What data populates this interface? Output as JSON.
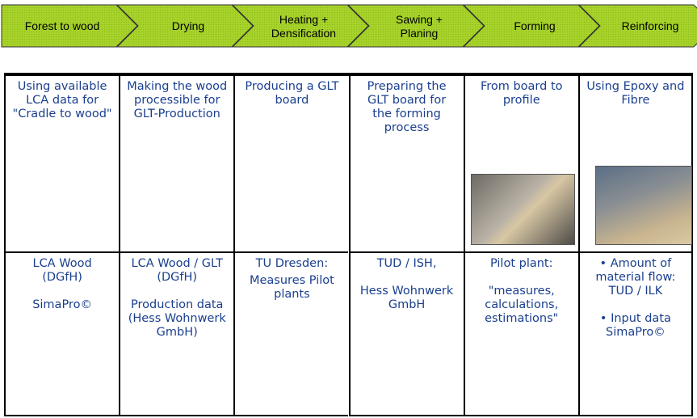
{
  "process_steps": [
    "Forest to wood",
    "Drying",
    "Heating + Densification",
    "Sawing + Planing",
    "Forming",
    "Reinforcing"
  ],
  "table": {
    "rows": [
      [
        "Using available LCA data for \"Cradle to wood\"",
        "Making the wood processible for GLT-Production",
        "Producing a GLT board",
        "Preparing the GLT board for the forming process",
        "From board to profile",
        "Using Epoxy and Fibre"
      ],
      [
        [
          "LCA Wood (DGfH)",
          "SimaPro©"
        ],
        [
          "LCA Wood / GLT (DGfH)",
          "Production data (Hess Wohnwerk GmbH)"
        ],
        [
          "TU Dresden:",
          "Measures Pilot plants"
        ],
        [
          "TUD / ISH,",
          "Hess Wohnwerk GmbH"
        ],
        [
          "Pilot plant:",
          "\"measures, calculations, estimations\""
        ],
        [
          "• Amount of material flow: TUD / ILK",
          "• Input data SimaPro©"
        ]
      ]
    ]
  }
}
